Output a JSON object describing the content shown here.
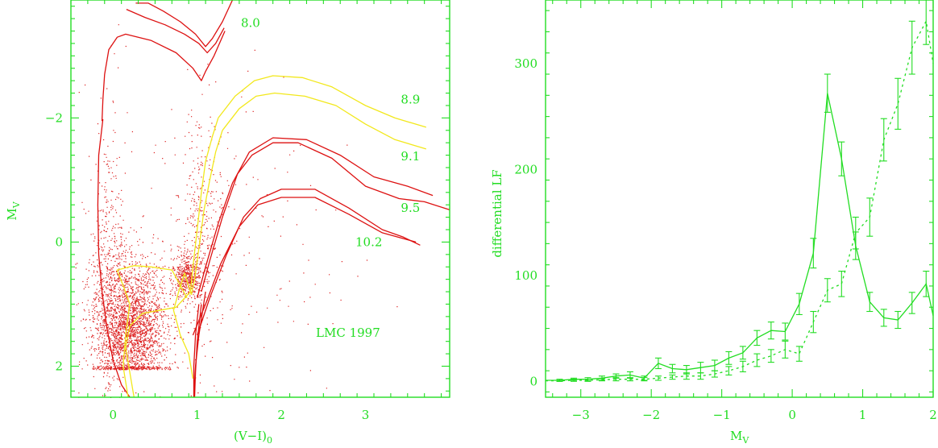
{
  "chart_data": [
    {
      "type": "scatter",
      "title": "",
      "xlabel": "(V−I)",
      "xlabel_sub": "0",
      "ylabel": "M",
      "ylabel_sub": "V",
      "xlim": [
        -0.5,
        4.0
      ],
      "ylim": [
        2.5,
        -3.9
      ],
      "xticks": [
        {
          "v": 0,
          "t": "0"
        },
        {
          "v": 1,
          "t": "1"
        },
        {
          "v": 2,
          "t": "2"
        },
        {
          "v": 3,
          "t": "3"
        }
      ],
      "yticks": [
        {
          "v": -2,
          "t": "−2"
        },
        {
          "v": 0,
          "t": "0"
        },
        {
          "v": 2,
          "t": "2"
        }
      ],
      "annotation": "LMC 1997",
      "colors": {
        "axis": "#22dd22",
        "stars": "#dd2222",
        "isochrone_red": "#dd1111",
        "isochrone_yellow": "#f2e81c"
      },
      "isochrone_labels": [
        {
          "text": "8.0",
          "x": 1.52,
          "y": -3.53
        },
        {
          "text": "8.9",
          "x": 3.42,
          "y": -2.3
        },
        {
          "text": "9.1",
          "x": 3.42,
          "y": -1.38
        },
        {
          "text": "9.5",
          "x": 3.42,
          "y": -0.55
        },
        {
          "text": "10.2",
          "x": 2.88,
          "y": 0.0
        }
      ],
      "isochrones": [
        {
          "name": "8.0",
          "color": "red",
          "points": [
            [
              0.16,
              -3.75
            ],
            [
              0.38,
              -3.62
            ],
            [
              0.62,
              -3.5
            ],
            [
              0.85,
              -3.35
            ],
            [
              1.02,
              -3.2
            ],
            [
              1.12,
              -3.05
            ],
            [
              1.22,
              -3.2
            ],
            [
              1.32,
              -3.45
            ]
          ]
        },
        {
          "name": "8.0",
          "color": "red",
          "points": [
            [
              0.27,
              -3.85
            ],
            [
              0.42,
              -3.85
            ],
            [
              0.6,
              -3.72
            ],
            [
              0.8,
              -3.55
            ],
            [
              0.98,
              -3.35
            ],
            [
              1.1,
              -3.15
            ],
            [
              1.18,
              -3.28
            ],
            [
              1.3,
              -3.55
            ],
            [
              1.42,
              -3.9
            ]
          ]
        },
        {
          "name": "8.0",
          "color": "red",
          "points": [
            [
              -0.13,
              -1.95
            ],
            [
              -0.12,
              -2.3
            ],
            [
              -0.1,
              -2.7
            ],
            [
              -0.05,
              -3.1
            ],
            [
              0.05,
              -3.3
            ],
            [
              0.15,
              -3.35
            ],
            [
              0.45,
              -3.25
            ],
            [
              0.75,
              -3.05
            ],
            [
              0.95,
              -2.8
            ],
            [
              1.05,
              -2.6
            ],
            [
              1.1,
              -2.75
            ],
            [
              1.2,
              -3.0
            ],
            [
              1.33,
              -3.4
            ]
          ]
        },
        {
          "name": "8.0",
          "color": "red",
          "points": [
            [
              -0.12,
              -1.98
            ],
            [
              -0.17,
              -1.4
            ],
            [
              -0.18,
              -0.6
            ],
            [
              -0.17,
              0.2
            ],
            [
              -0.13,
              0.8
            ],
            [
              -0.07,
              1.4
            ],
            [
              0.0,
              1.9
            ],
            [
              0.1,
              2.3
            ],
            [
              0.2,
              2.5
            ]
          ]
        },
        {
          "name": "8.9",
          "color": "yellow",
          "points": [
            [
              1.25,
              -2.0
            ],
            [
              1.45,
              -2.35
            ],
            [
              1.68,
              -2.6
            ],
            [
              1.9,
              -2.68
            ],
            [
              2.25,
              -2.65
            ],
            [
              2.6,
              -2.5
            ],
            [
              3.0,
              -2.2
            ],
            [
              3.35,
              -2.0
            ],
            [
              3.72,
              -1.85
            ]
          ]
        },
        {
          "name": "9.1",
          "color": "yellow",
          "points": [
            [
              1.3,
              -1.8
            ],
            [
              1.5,
              -2.15
            ],
            [
              1.7,
              -2.35
            ],
            [
              1.92,
              -2.4
            ],
            [
              2.28,
              -2.35
            ],
            [
              2.65,
              -2.2
            ],
            [
              3.0,
              -1.9
            ],
            [
              3.35,
              -1.65
            ],
            [
              3.72,
              -1.5
            ]
          ]
        },
        {
          "name": "8.9",
          "color": "yellow",
          "points": [
            [
              1.25,
              -2.0
            ],
            [
              1.18,
              -1.7
            ],
            [
              1.1,
              -1.3
            ],
            [
              1.05,
              -0.8
            ],
            [
              1.0,
              -0.2
            ],
            [
              0.95,
              0.4
            ],
            [
              0.92,
              0.8
            ]
          ]
        },
        {
          "name": "9.1",
          "color": "yellow",
          "points": [
            [
              1.3,
              -1.8
            ],
            [
              1.22,
              -1.45
            ],
            [
              1.15,
              -1.0
            ],
            [
              1.08,
              -0.5
            ],
            [
              1.02,
              0.1
            ],
            [
              0.97,
              0.6
            ],
            [
              0.93,
              0.85
            ]
          ]
        },
        {
          "name": "yellow-tail-1",
          "color": "yellow",
          "points": [
            [
              0.93,
              0.85
            ],
            [
              0.85,
              0.5
            ],
            [
              0.78,
              0.8
            ],
            [
              0.72,
              1.1
            ],
            [
              0.8,
              1.5
            ],
            [
              0.9,
              1.8
            ],
            [
              0.95,
              2.2
            ]
          ]
        },
        {
          "name": "yellow-tail-2",
          "color": "yellow",
          "points": [
            [
              0.92,
              0.8
            ],
            [
              0.75,
              1.05
            ],
            [
              0.55,
              1.1
            ],
            [
              0.35,
              1.15
            ],
            [
              0.2,
              1.35
            ],
            [
              0.15,
              1.7
            ],
            [
              0.2,
              2.1
            ],
            [
              0.25,
              2.5
            ]
          ]
        },
        {
          "name": "yellow-tail-3",
          "color": "yellow",
          "points": [
            [
              0.88,
              0.9
            ],
            [
              0.7,
              0.45
            ],
            [
              0.45,
              0.4
            ],
            [
              0.25,
              0.38
            ],
            [
              0.05,
              0.45
            ],
            [
              0.12,
              0.7
            ],
            [
              0.2,
              1.0
            ],
            [
              0.15,
              1.5
            ],
            [
              0.12,
              2.0
            ],
            [
              0.18,
              2.5
            ]
          ]
        },
        {
          "name": "9.5",
          "color": "red",
          "points": [
            [
              1.05,
              0.8
            ],
            [
              1.15,
              0.3
            ],
            [
              1.3,
              -0.4
            ],
            [
              1.48,
              -1.1
            ],
            [
              1.65,
              -1.4
            ],
            [
              1.9,
              -1.6
            ],
            [
              2.2,
              -1.6
            ],
            [
              2.6,
              -1.35
            ],
            [
              3.0,
              -0.9
            ],
            [
              3.4,
              -0.7
            ],
            [
              3.7,
              -0.65
            ],
            [
              4.0,
              -0.52
            ]
          ]
        },
        {
          "name": "9.5",
          "color": "red",
          "points": [
            [
              1.0,
              0.9
            ],
            [
              1.1,
              0.4
            ],
            [
              1.25,
              -0.3
            ],
            [
              1.42,
              -0.95
            ],
            [
              1.62,
              -1.45
            ],
            [
              1.9,
              -1.68
            ],
            [
              2.3,
              -1.65
            ],
            [
              2.7,
              -1.4
            ],
            [
              3.1,
              -1.05
            ],
            [
              3.5,
              -0.9
            ],
            [
              3.8,
              -0.75
            ]
          ]
        },
        {
          "name": "10.2",
          "color": "red",
          "points": [
            [
              1.0,
              1.5
            ],
            [
              1.15,
              0.9
            ],
            [
              1.35,
              0.2
            ],
            [
              1.55,
              -0.4
            ],
            [
              1.75,
              -0.7
            ],
            [
              2.0,
              -0.85
            ],
            [
              2.4,
              -0.85
            ],
            [
              2.8,
              -0.55
            ],
            [
              3.2,
              -0.2
            ],
            [
              3.45,
              -0.08
            ],
            [
              3.65,
              0.05
            ]
          ]
        },
        {
          "name": "10.2",
          "color": "red",
          "points": [
            [
              0.95,
              1.5
            ],
            [
              1.1,
              1.0
            ],
            [
              1.28,
              0.35
            ],
            [
              1.5,
              -0.25
            ],
            [
              1.72,
              -0.6
            ],
            [
              2.0,
              -0.72
            ],
            [
              2.4,
              -0.72
            ],
            [
              2.8,
              -0.45
            ],
            [
              3.2,
              -0.15
            ],
            [
              3.6,
              0.0
            ]
          ]
        },
        {
          "name": "10.2-rgb-1",
          "color": "red",
          "points": [
            [
              1.02,
              1.0
            ],
            [
              0.98,
              1.5
            ],
            [
              0.96,
              2.0
            ],
            [
              0.96,
              2.5
            ]
          ]
        },
        {
          "name": "10.2-rgb-2",
          "color": "red",
          "points": [
            [
              1.05,
              1.0
            ],
            [
              1.0,
              1.6
            ],
            [
              0.98,
              2.1
            ],
            [
              0.97,
              2.5
            ]
          ]
        },
        {
          "name": "10.2-rgb-3",
          "color": "red",
          "points": [
            [
              1.1,
              0.8
            ],
            [
              1.02,
              1.5
            ],
            [
              0.98,
              2.0
            ],
            [
              0.96,
              2.5
            ]
          ]
        }
      ],
      "star_clouds": [
        {
          "name": "main-sequence",
          "cx": 0.22,
          "cy": 1.35,
          "sx": 0.22,
          "sy": 0.55,
          "n": 2600
        },
        {
          "name": "blue-plume",
          "cx": -0.05,
          "cy": 0.6,
          "sx": 0.12,
          "sy": 1.1,
          "n": 500
        },
        {
          "name": "red-clump",
          "cx": 0.88,
          "cy": 0.55,
          "sx": 0.08,
          "sy": 0.18,
          "n": 450
        },
        {
          "name": "red-giant-branch",
          "cx": 1.05,
          "cy": -0.3,
          "sx": 0.12,
          "sy": 0.9,
          "n": 350
        },
        {
          "name": "field",
          "cx": 1.2,
          "cy": 0.3,
          "sx": 0.9,
          "sy": 1.5,
          "n": 220
        }
      ]
    },
    {
      "type": "line",
      "title": "",
      "xlabel": "M",
      "xlabel_sub": "V",
      "ylabel": "differential LF",
      "xlim": [
        -3.5,
        2.0
      ],
      "ylim": [
        -15,
        360
      ],
      "xticks": [
        {
          "v": -3,
          "t": "−3"
        },
        {
          "v": -2,
          "t": "−2"
        },
        {
          "v": -1,
          "t": "−1"
        },
        {
          "v": 0,
          "t": "0"
        },
        {
          "v": 1,
          "t": "1"
        },
        {
          "v": 2,
          "t": "2"
        }
      ],
      "yticks": [
        {
          "v": 0,
          "t": "0"
        },
        {
          "v": 100,
          "t": "100"
        },
        {
          "v": 200,
          "t": "200"
        },
        {
          "v": 300,
          "t": "300"
        }
      ],
      "series": [
        {
          "style": "solid",
          "x": [
            -3.5,
            -3.3,
            -3.1,
            -2.9,
            -2.7,
            -2.5,
            -2.3,
            -2.1,
            -1.9,
            -1.7,
            -1.5,
            -1.3,
            -1.1,
            -0.9,
            -0.7,
            -0.5,
            -0.3,
            -0.1,
            0.1,
            0.3,
            0.5,
            0.7,
            0.9,
            1.1,
            1.3,
            1.5,
            1.7,
            1.9,
            2.0
          ],
          "y": [
            1,
            1,
            2,
            2,
            3,
            5,
            6,
            3,
            17,
            12,
            11,
            13,
            15,
            22,
            27,
            41,
            48,
            47,
            73,
            121,
            272,
            210,
            128,
            75,
            60,
            58,
            74,
            92,
            62
          ],
          "err": [
            1,
            1,
            1,
            1.5,
            2,
            2,
            3,
            2,
            5,
            4,
            4,
            5,
            5,
            6,
            6,
            7,
            8,
            8,
            10,
            14,
            18,
            16,
            13,
            9,
            8,
            8,
            10,
            12,
            10
          ]
        },
        {
          "style": "dotted",
          "x": [
            -3.5,
            -3.3,
            -3.1,
            -2.9,
            -2.7,
            -2.5,
            -2.3,
            -2.1,
            -1.9,
            -1.7,
            -1.5,
            -1.3,
            -1.1,
            -0.9,
            -0.7,
            -0.5,
            -0.3,
            -0.1,
            0.1,
            0.3,
            0.5,
            0.7,
            0.9,
            1.1,
            1.3,
            1.5,
            1.7,
            1.9,
            2.0
          ],
          "y": [
            0.5,
            0.5,
            1,
            1,
            1.5,
            2,
            2,
            2,
            3,
            4,
            5,
            5,
            7,
            10,
            14,
            20,
            24,
            30,
            26,
            56,
            86,
            92,
            140,
            155,
            228,
            262,
            315,
            340,
            300
          ],
          "err": [
            0.5,
            0.5,
            1,
            1,
            1,
            1.5,
            1.5,
            1.5,
            2,
            2,
            3,
            3,
            3,
            4,
            5,
            6,
            6,
            8,
            7,
            10,
            11,
            12,
            15,
            18,
            20,
            24,
            25,
            22,
            20
          ]
        }
      ]
    }
  ]
}
